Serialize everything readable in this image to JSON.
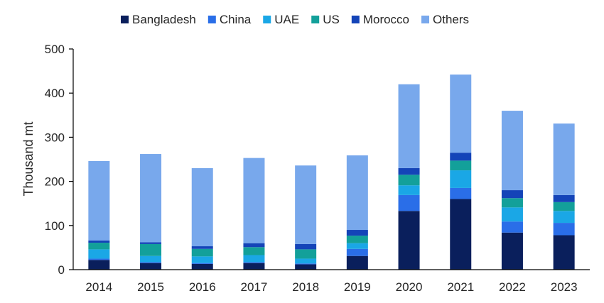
{
  "chart_data": {
    "type": "bar",
    "stacked": true,
    "title": "",
    "xlabel": "",
    "ylabel": "Thousand mt",
    "ylim": [
      0,
      500
    ],
    "yticks": [
      "0",
      "100",
      "200",
      "300",
      "400",
      "500"
    ],
    "legend_position": "top",
    "grid": false,
    "categories": [
      "2014",
      "2015",
      "2016",
      "2017",
      "2018",
      "2019",
      "2020",
      "2021",
      "2022",
      "2023"
    ],
    "series": [
      {
        "name": "Bangladesh",
        "color": "#0a1f5c",
        "values": [
          22,
          15,
          13,
          15,
          12,
          31,
          133,
          160,
          84,
          78
        ]
      },
      {
        "name": "China",
        "color": "#2a6ee8",
        "values": [
          3,
          2,
          2,
          2,
          2,
          16,
          36,
          25,
          25,
          28
        ]
      },
      {
        "name": "UAE",
        "color": "#1aa7e6",
        "values": [
          21,
          14,
          15,
          16,
          11,
          13,
          22,
          40,
          32,
          27
        ]
      },
      {
        "name": "US",
        "color": "#13a09a",
        "values": [
          15,
          27,
          17,
          18,
          21,
          17,
          24,
          22,
          21,
          20
        ]
      },
      {
        "name": "Morocco",
        "color": "#1444b8",
        "values": [
          5,
          4,
          6,
          9,
          12,
          13,
          15,
          18,
          18,
          16
        ]
      },
      {
        "name": "Others",
        "color": "#78a8ec",
        "values": [
          180,
          200,
          177,
          193,
          178,
          169,
          190,
          177,
          180,
          162
        ]
      }
    ]
  }
}
